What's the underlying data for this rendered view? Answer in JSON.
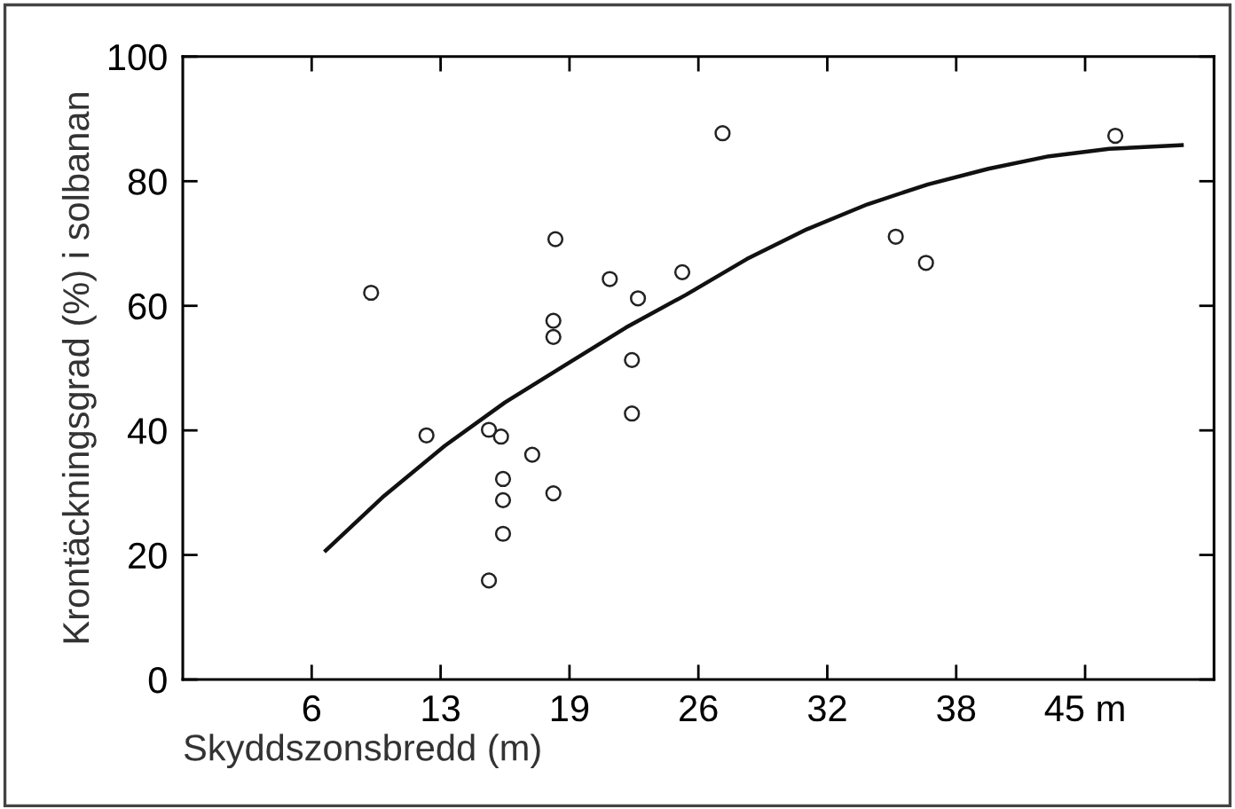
{
  "chart_data": {
    "type": "scatter",
    "xlabel": "Skyddszonsbredd (m)",
    "ylabel": "Krontäckningsgrad (%) i solbanan",
    "xlim": [
      0,
      51.2
    ],
    "xticks": [
      {
        "value": 6.4,
        "label": "6"
      },
      {
        "value": 12.8,
        "label": "13"
      },
      {
        "value": 19.2,
        "label": "19"
      },
      {
        "value": 25.6,
        "label": "26"
      },
      {
        "value": 32,
        "label": "32"
      },
      {
        "value": 38.4,
        "label": "38"
      },
      {
        "value": 44.8,
        "label": "45 m"
      }
    ],
    "ylim": [
      0,
      100
    ],
    "yticks": [
      0,
      20,
      40,
      60,
      80,
      100
    ],
    "grid": false,
    "legend": false,
    "marker": "circle",
    "series": [
      {
        "color": "#222222",
        "x": [
          9.35,
          12.1,
          15.2,
          15.8,
          15.2,
          15.9,
          15.9,
          15.9,
          17.35,
          18.4,
          18.5,
          18.4,
          18.4,
          21.2,
          22.6,
          22.3,
          22.3,
          24.8,
          35.4,
          36.9,
          26.8,
          46.3
        ],
        "values": [
          62.1,
          39.2,
          40.1,
          39.0,
          15.9,
          32.2,
          28.8,
          23.4,
          36.1,
          29.9,
          70.7,
          57.6,
          55.0,
          64.3,
          61.2,
          51.3,
          42.7,
          65.4,
          71.1,
          66.9,
          87.7,
          87.3
        ]
      },
      {
        "type": "line",
        "color": "#111111",
        "marker": "none",
        "line_style": "solid",
        "x": [
          7.1,
          10,
          13,
          16,
          19,
          22,
          25,
          28,
          31,
          34,
          37,
          40,
          43,
          46,
          49.6
        ],
        "values": [
          20.7,
          29.5,
          37.5,
          44.5,
          50.5,
          56.5,
          61.8,
          67.5,
          72.3,
          76.3,
          79.5,
          82,
          84,
          85.2,
          85.8
        ]
      }
    ]
  }
}
